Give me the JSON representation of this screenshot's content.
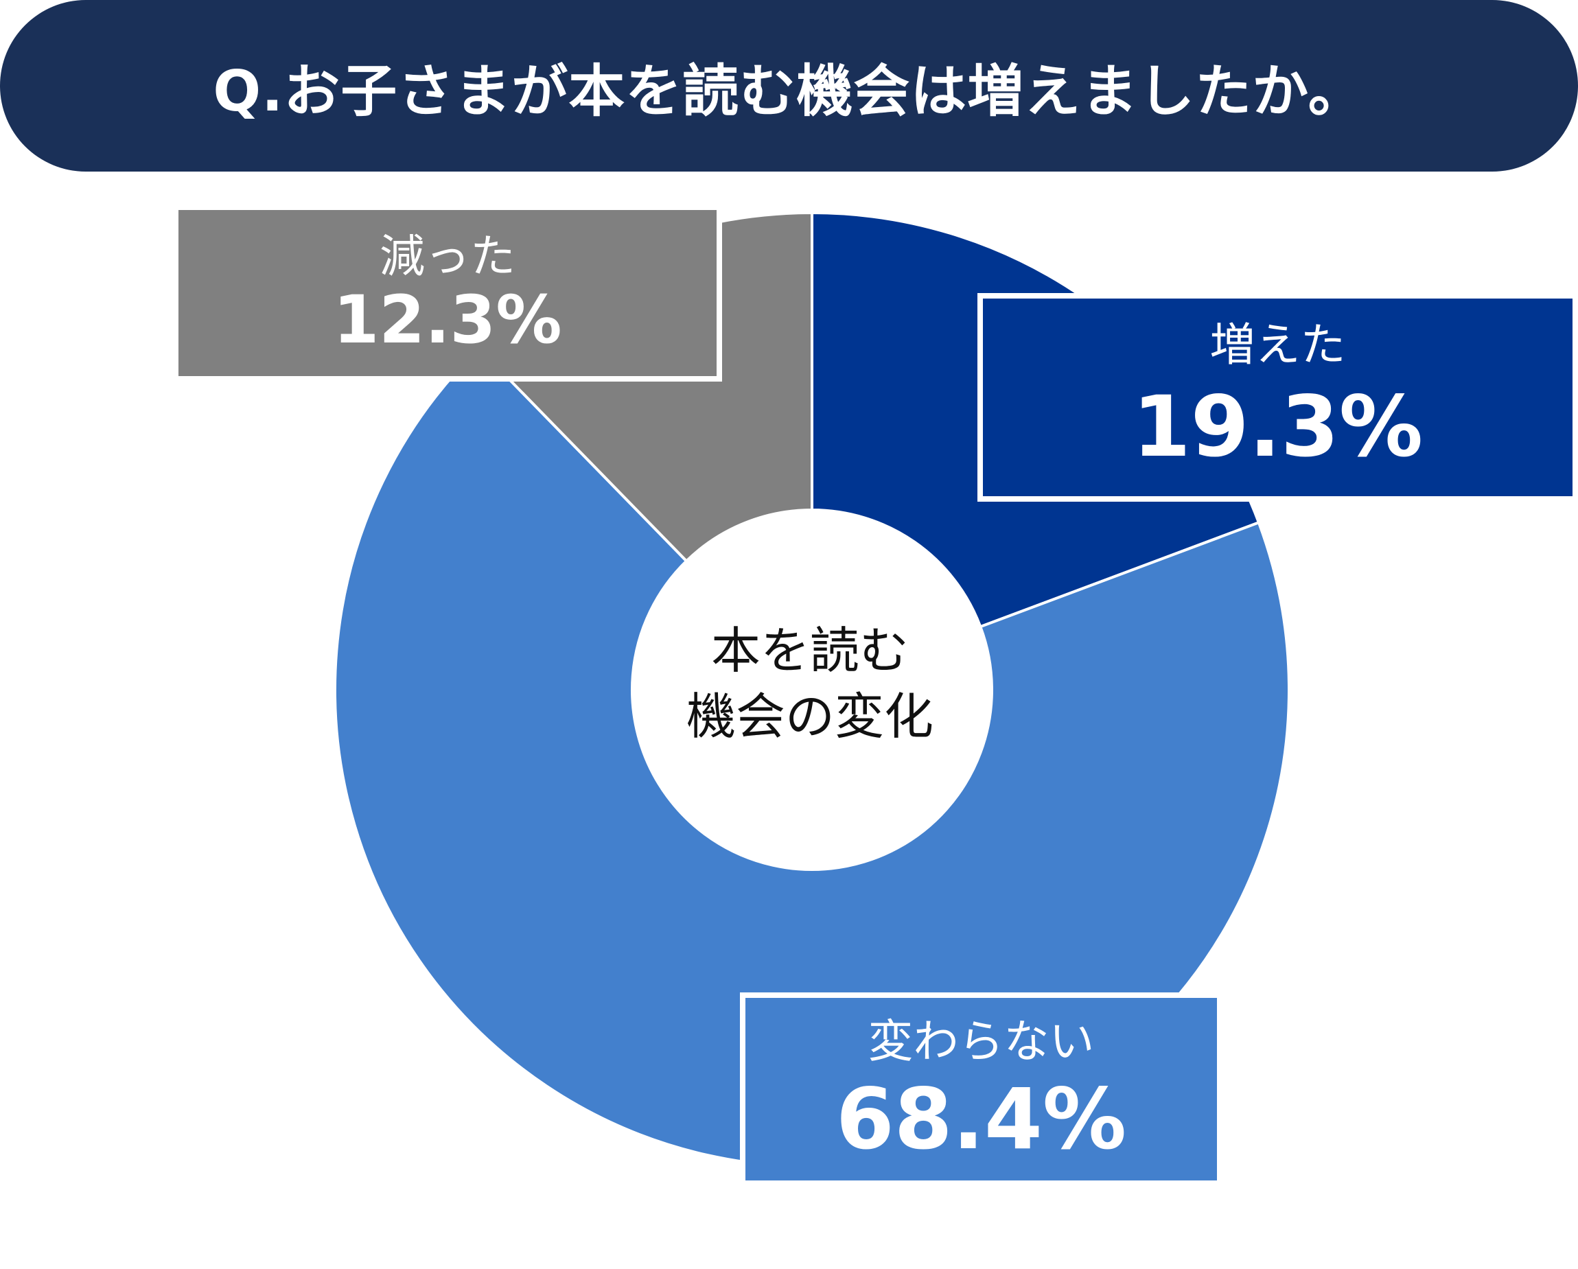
{
  "title": "Q.お子さまが本を読む機会は増えましたか。",
  "center_label": {
    "line1": "本を読む",
    "line2": "機会の変化"
  },
  "colors": {
    "banner": "#1a3058",
    "increased": "#003591",
    "unchanged": "#4380cd",
    "decreased": "#808080"
  },
  "chart_data": {
    "type": "pie",
    "donut": true,
    "title": "Q.お子さまが本を読む機会は増えましたか。",
    "center_text": "本を読む機会の変化",
    "slices": [
      {
        "label": "増えた",
        "value": 19.3,
        "value_label": "19.3%",
        "color": "#003591"
      },
      {
        "label": "変わらない",
        "value": 68.4,
        "value_label": "68.4%",
        "color": "#4380cd"
      },
      {
        "label": "減った",
        "value": 12.3,
        "value_label": "12.3%",
        "color": "#808080"
      }
    ],
    "start_angle": "12 o'clock",
    "direction": "clockwise"
  }
}
